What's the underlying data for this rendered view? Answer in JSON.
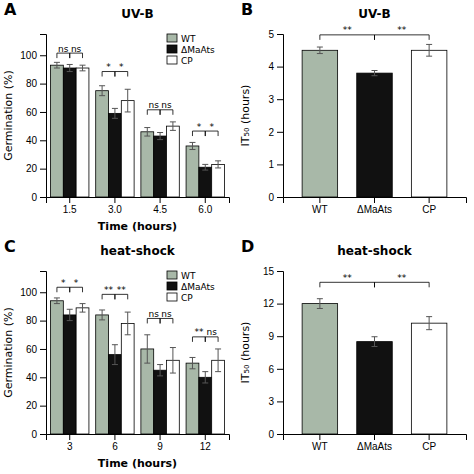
{
  "chart_data": [
    {
      "type": "bar",
      "panel_label": "A",
      "title": "UV-B",
      "xlabel": "Time (hours)",
      "ylabel": "Germination (%)",
      "categories": [
        "1.5",
        "3.0",
        "4.5",
        "6.0"
      ],
      "series": [
        {
          "name": "WT",
          "color": "#a8b8a8",
          "values": [
            93,
            75,
            46,
            36
          ],
          "errors": [
            2.0,
            3.5,
            3.0,
            2.5
          ]
        },
        {
          "name": "ΔMaAts",
          "color": "#111111",
          "values": [
            91,
            59,
            43,
            21
          ],
          "errors": [
            2.5,
            3.5,
            2.5,
            2.0
          ]
        },
        {
          "name": "CP",
          "color": "#ffffff",
          "values": [
            91,
            68,
            50,
            23
          ],
          "errors": [
            2.0,
            8.0,
            3.0,
            2.5
          ]
        }
      ],
      "ylim": [
        0,
        115
      ],
      "yticks": [
        0,
        20,
        40,
        60,
        80,
        100
      ],
      "grid": false,
      "legend": "upper right",
      "annotations": [
        {
          "category": "1.5",
          "from": "WT",
          "to": "ΔMaAts",
          "text": "ns",
          "y": 98
        },
        {
          "category": "1.5",
          "from": "ΔMaAts",
          "to": "CP",
          "text": "ns",
          "y": 98
        },
        {
          "category": "3.0",
          "from": "WT",
          "to": "ΔMaAts",
          "text": "*",
          "y": 85
        },
        {
          "category": "3.0",
          "from": "ΔMaAts",
          "to": "CP",
          "text": "*",
          "y": 85
        },
        {
          "category": "4.5",
          "from": "WT",
          "to": "ΔMaAts",
          "text": "ns",
          "y": 58
        },
        {
          "category": "4.5",
          "from": "ΔMaAts",
          "to": "CP",
          "text": "ns",
          "y": 58
        },
        {
          "category": "6.0",
          "from": "WT",
          "to": "ΔMaAts",
          "text": "*",
          "y": 43
        },
        {
          "category": "6.0",
          "from": "ΔMaAts",
          "to": "CP",
          "text": "*",
          "y": 43
        }
      ]
    },
    {
      "type": "bar",
      "panel_label": "B",
      "title": "UV-B",
      "ylabel": "IT₅₀ (hours)",
      "categories": [
        "WT",
        "ΔMaAts",
        "CP"
      ],
      "values": [
        4.5,
        3.8,
        4.5
      ],
      "errors": [
        0.1,
        0.08,
        0.18
      ],
      "colors": [
        "#a8b8a8",
        "#111111",
        "#ffffff"
      ],
      "ylim": [
        0,
        5
      ],
      "yticks": [
        0,
        1,
        2,
        3,
        4,
        5
      ],
      "grid": false,
      "annotations": [
        {
          "from": "WT",
          "to": "ΔMaAts",
          "text": "**",
          "y": 4.82
        },
        {
          "from": "ΔMaAts",
          "to": "CP",
          "text": "**",
          "y": 4.82
        }
      ]
    },
    {
      "type": "bar",
      "panel_label": "C",
      "title": "heat-shock",
      "xlabel": "Time (hours)",
      "ylabel": "Germination (%)",
      "categories": [
        "3",
        "6",
        "9",
        "12"
      ],
      "series": [
        {
          "name": "WT",
          "color": "#a8b8a8",
          "values": [
            94,
            84,
            60,
            50
          ],
          "errors": [
            2.0,
            3.5,
            10.0,
            4.0
          ]
        },
        {
          "name": "ΔMaAts",
          "color": "#111111",
          "values": [
            84,
            56,
            45,
            40
          ],
          "errors": [
            4.0,
            7.0,
            4.0,
            4.0
          ]
        },
        {
          "name": "CP",
          "color": "#ffffff",
          "values": [
            89,
            78,
            52,
            52
          ],
          "errors": [
            3.0,
            8.0,
            9.0,
            8.0
          ]
        }
      ],
      "ylim": [
        0,
        115
      ],
      "yticks": [
        0,
        20,
        40,
        60,
        80,
        100
      ],
      "grid": false,
      "legend": "upper right",
      "annotations": [
        {
          "category": "3",
          "from": "WT",
          "to": "ΔMaAts",
          "text": "*",
          "y": 100
        },
        {
          "category": "3",
          "from": "ΔMaAts",
          "to": "CP",
          "text": "*",
          "y": 100
        },
        {
          "category": "6",
          "from": "WT",
          "to": "ΔMaAts",
          "text": "**",
          "y": 95
        },
        {
          "category": "6",
          "from": "ΔMaAts",
          "to": "CP",
          "text": "**",
          "y": 95
        },
        {
          "category": "9",
          "from": "WT",
          "to": "ΔMaAts",
          "text": "ns",
          "y": 78
        },
        {
          "category": "9",
          "from": "ΔMaAts",
          "to": "CP",
          "text": "ns",
          "y": 78
        },
        {
          "category": "12",
          "from": "WT",
          "to": "ΔMaAts",
          "text": "**",
          "y": 65
        },
        {
          "category": "12",
          "from": "ΔMaAts",
          "to": "CP",
          "text": "ns",
          "y": 65
        }
      ]
    },
    {
      "type": "bar",
      "panel_label": "D",
      "title": "heat-shock",
      "ylabel": "IT₅₀ (hours)",
      "categories": [
        "WT",
        "ΔMaAts",
        "CP"
      ],
      "values": [
        12.0,
        8.5,
        10.2
      ],
      "errors": [
        0.45,
        0.45,
        0.6
      ],
      "colors": [
        "#a8b8a8",
        "#111111",
        "#ffffff"
      ],
      "ylim": [
        0,
        15
      ],
      "yticks": [
        0,
        3,
        6,
        9,
        12,
        15
      ],
      "grid": false,
      "annotations": [
        {
          "from": "WT",
          "to": "ΔMaAts",
          "text": "**",
          "y": 13.5
        },
        {
          "from": "ΔMaAts",
          "to": "CP",
          "text": "**",
          "y": 13.5
        }
      ]
    }
  ]
}
